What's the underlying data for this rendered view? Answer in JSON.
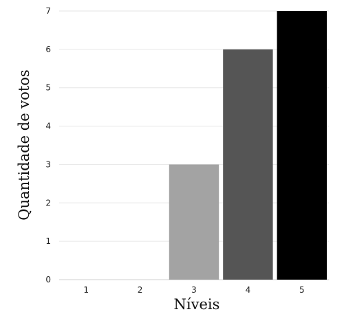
{
  "chart_data": {
    "type": "bar",
    "categories": [
      "1",
      "2",
      "3",
      "4",
      "5"
    ],
    "values": [
      0,
      0,
      3,
      6,
      7
    ],
    "colors": [
      "#ffffff",
      "#ffffff",
      "#a3a3a3",
      "#555555",
      "#000000"
    ],
    "xlabel": "Níveis",
    "ylabel": "Quantidade de votos",
    "ylim": [
      0,
      7
    ],
    "yticks": [
      0,
      1,
      2,
      3,
      4,
      5,
      6,
      7
    ],
    "grid": "horizontal"
  }
}
